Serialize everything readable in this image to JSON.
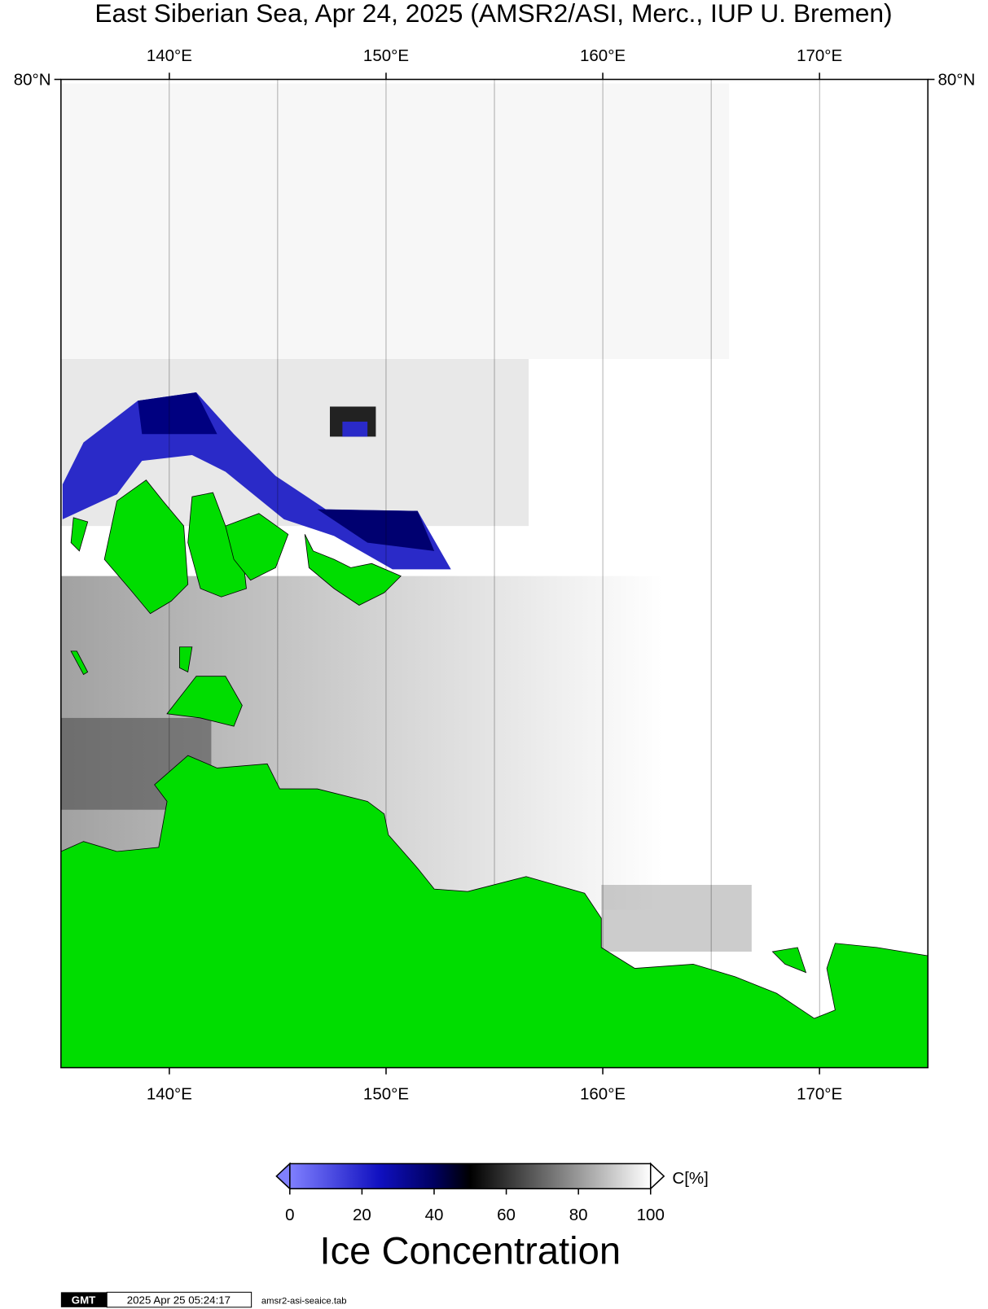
{
  "map": {
    "title": "East Siberian Sea, Apr 24, 2025 (AMSR2/ASI, Merc., IUP U. Bremen)",
    "xlim": [
      135,
      175
    ],
    "xticks": [
      {
        "value": 140,
        "label": "140°E"
      },
      {
        "value": 150,
        "label": "150°E"
      },
      {
        "value": 160,
        "label": "160°E"
      },
      {
        "value": 170,
        "label": "170°E"
      }
    ],
    "gridlines": [
      140,
      145,
      150,
      155,
      160,
      165,
      170
    ],
    "yticks": [
      {
        "value": 80,
        "label": "80°N"
      }
    ],
    "land_color": "#00dd00"
  },
  "colorbar": {
    "lim": [
      0,
      100
    ],
    "ticks": [
      0,
      20,
      40,
      60,
      80,
      100
    ],
    "unit": "C[%]",
    "label": "Ice Concentration",
    "stops": [
      {
        "value": 0,
        "color": "#8080ff"
      },
      {
        "value": 25,
        "color": "#1010c0"
      },
      {
        "value": 40,
        "color": "#000060"
      },
      {
        "value": 50,
        "color": "#000000"
      },
      {
        "value": 100,
        "color": "#ffffff"
      }
    ]
  },
  "footer": {
    "logo": "GMT",
    "timestamp": "2025 Apr 25 05:24:17",
    "file": "amsr2-asi-seaice.tab"
  }
}
